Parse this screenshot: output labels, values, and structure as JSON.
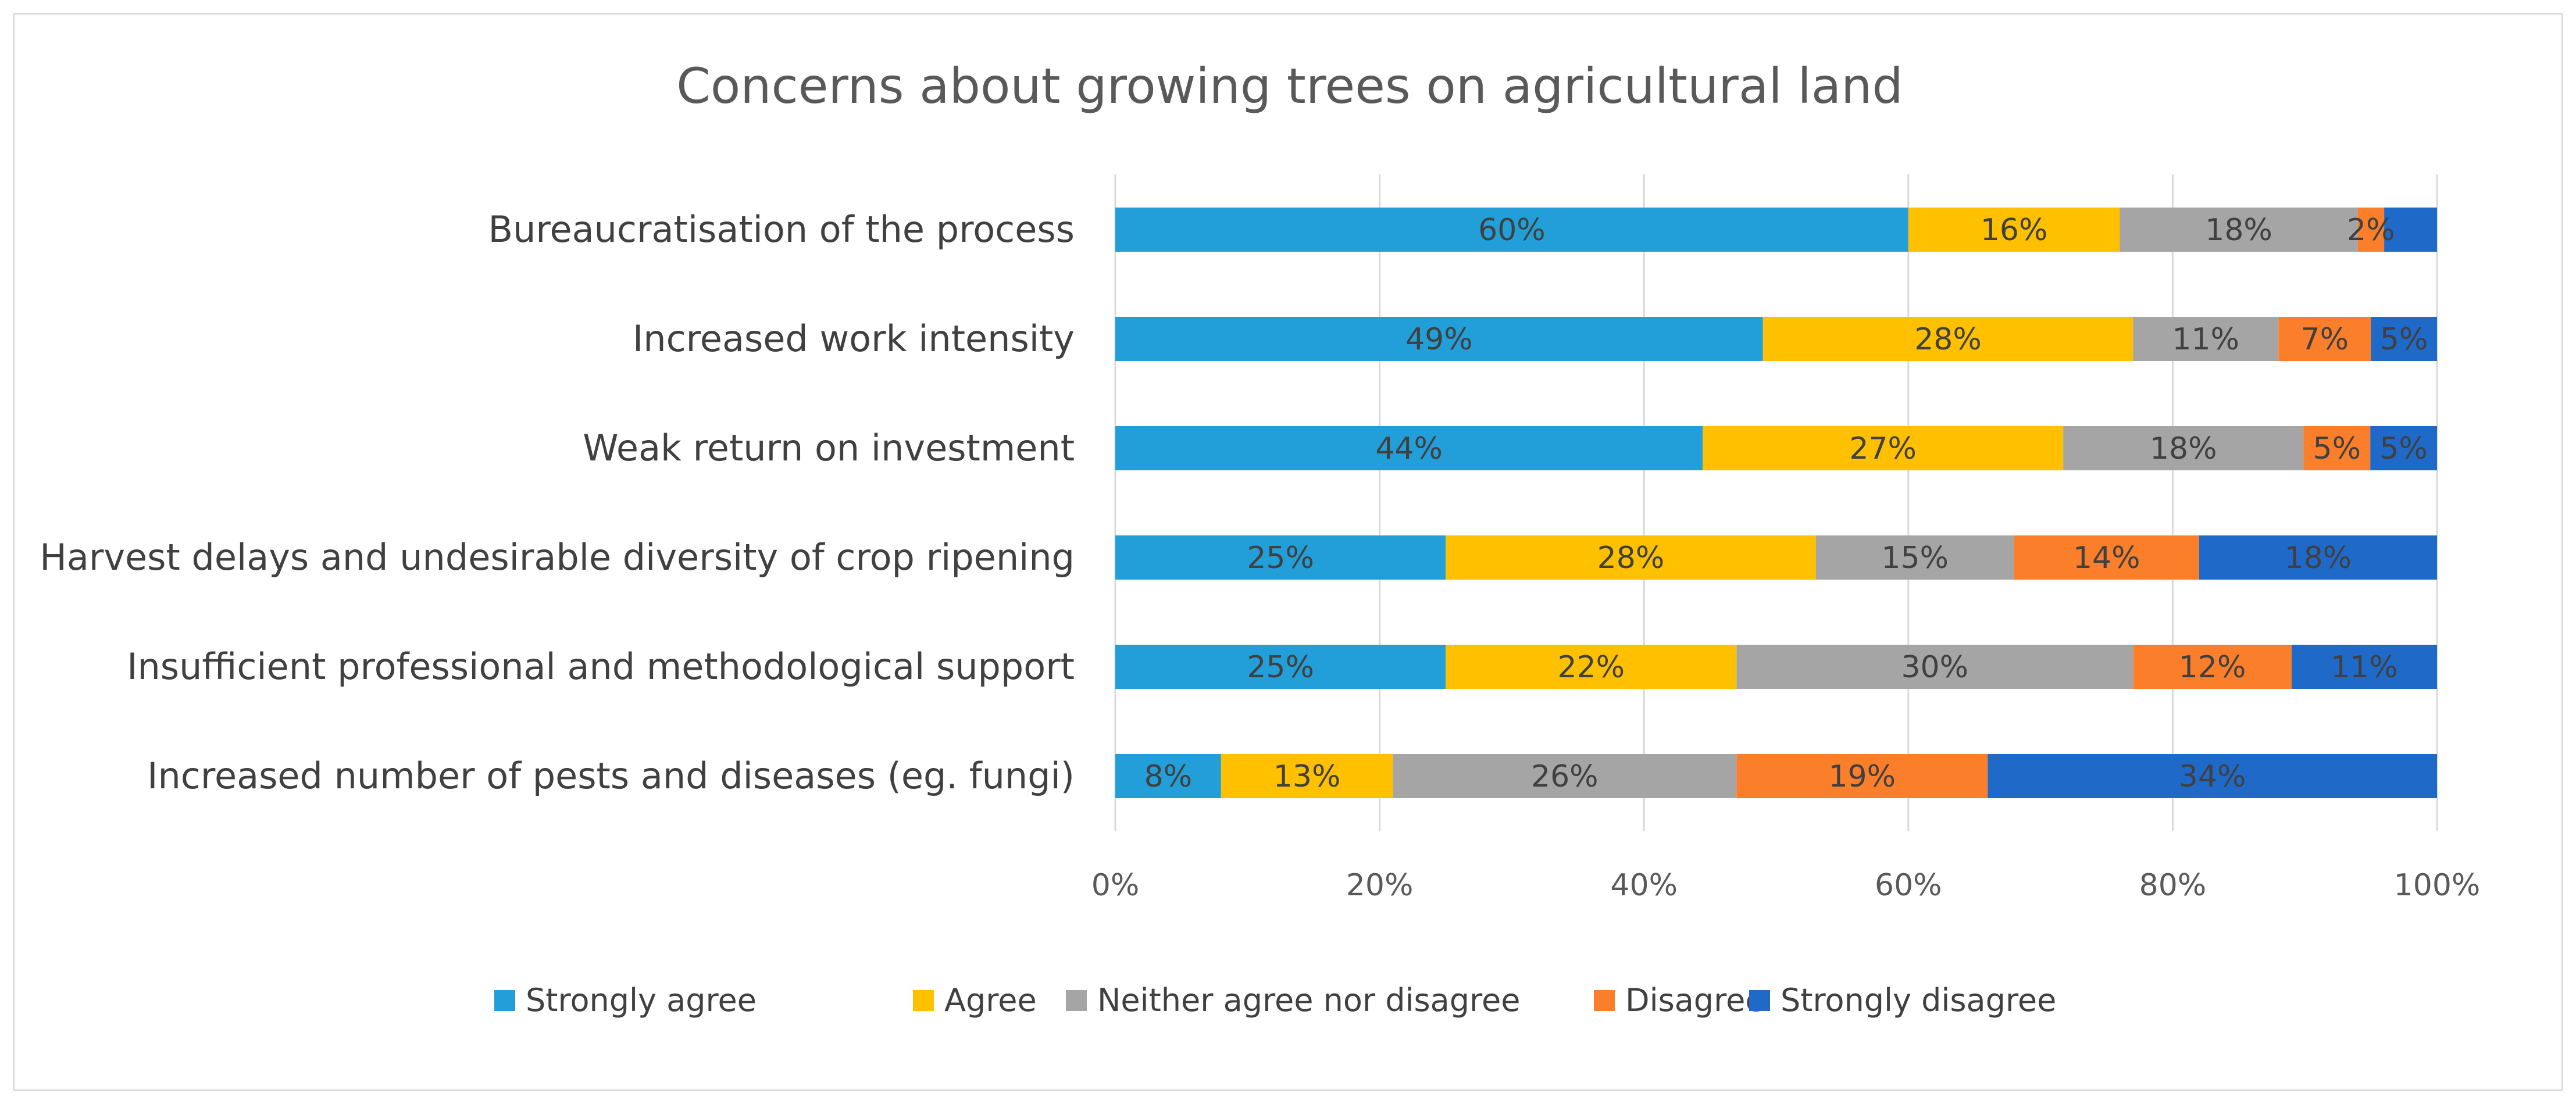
{
  "chart_data": {
    "type": "bar",
    "orientation": "horizontal",
    "stacked": "percent",
    "title": "Concerns about growing trees on agricultural land",
    "xlabel": "",
    "ylabel": "",
    "xlim": [
      0,
      100
    ],
    "grid": true,
    "legend_position": "bottom",
    "categories": [
      "Bureaucratisation of the process",
      "Increased work intensity",
      "Weak return on investment",
      "Harvest delays and undesirable diversity of crop ripening",
      "Insufficient professional and methodological support",
      "Increased number of pests and diseases (eg. fungi)"
    ],
    "x_ticks": [
      "0%",
      "20%",
      "40%",
      "60%",
      "80%",
      "100%"
    ],
    "series": [
      {
        "name": "Strongly agree",
        "color": "#229fd9",
        "values": [
          60,
          49,
          44,
          25,
          25,
          8
        ],
        "labels": [
          "60%",
          "49%",
          "44%",
          "25%",
          "25%",
          "8%"
        ]
      },
      {
        "name": "Agree",
        "color": "#ffc000",
        "values": [
          16,
          28,
          27,
          28,
          22,
          13
        ],
        "labels": [
          "16%",
          "28%",
          "27%",
          "28%",
          "22%",
          "13%"
        ]
      },
      {
        "name": "Neither agree nor disagree",
        "color": "#a5a5a5",
        "values": [
          18,
          11,
          18,
          15,
          30,
          26
        ],
        "labels": [
          "18%",
          "11%",
          "18%",
          "15%",
          "30%",
          "26%"
        ]
      },
      {
        "name": "Disagree",
        "color": "#fb7f2a",
        "values": [
          2,
          7,
          5,
          14,
          12,
          19
        ],
        "labels": [
          "2%",
          "7%",
          "5%",
          "14%",
          "12%",
          "19%"
        ]
      },
      {
        "name": "Strongly disagree",
        "color": "#1f6ac9",
        "values": [
          4,
          5,
          5,
          18,
          11,
          34
        ],
        "labels": [
          "",
          "5%",
          "5%",
          "18%",
          "11%",
          "34%"
        ]
      }
    ]
  }
}
